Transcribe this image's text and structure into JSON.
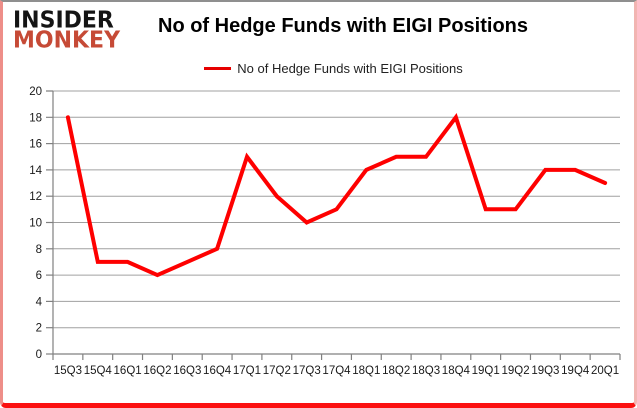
{
  "brand": {
    "line1": "INSIDER",
    "line2": "MONKEY",
    "line2_color": "#c64a36"
  },
  "header": {
    "title": "No of Hedge Funds with EIGI Positions"
  },
  "legend": {
    "label": "No of Hedge Funds with EIGI Positions",
    "swatch_color": "#e60000"
  },
  "chart_data": {
    "type": "line",
    "title": "No of Hedge Funds with EIGI Positions",
    "categories": [
      "15Q3",
      "15Q4",
      "16Q1",
      "16Q2",
      "16Q3",
      "16Q4",
      "17Q1",
      "17Q2",
      "17Q3",
      "17Q4",
      "18Q1",
      "18Q2",
      "18Q3",
      "18Q4",
      "19Q1",
      "19Q2",
      "19Q3",
      "19Q4",
      "20Q1"
    ],
    "series": [
      {
        "name": "No of Hedge Funds with EIGI Positions",
        "values": [
          18,
          7,
          7,
          6,
          7,
          8,
          15,
          12,
          10,
          11,
          14,
          15,
          15,
          18,
          11,
          11,
          14,
          14,
          13
        ]
      }
    ],
    "ylim": [
      0,
      20
    ],
    "y_ticks": [
      0,
      2,
      4,
      6,
      8,
      10,
      12,
      14,
      16,
      18,
      20
    ],
    "xlabel": "",
    "ylabel": "",
    "grid": true,
    "legend_position": "top-center",
    "line_color": "#fe0000",
    "line_width": 4,
    "grid_color": "#a0a0a0",
    "axis_color": "#808080",
    "tick_label_color": "#1a1a1a"
  }
}
